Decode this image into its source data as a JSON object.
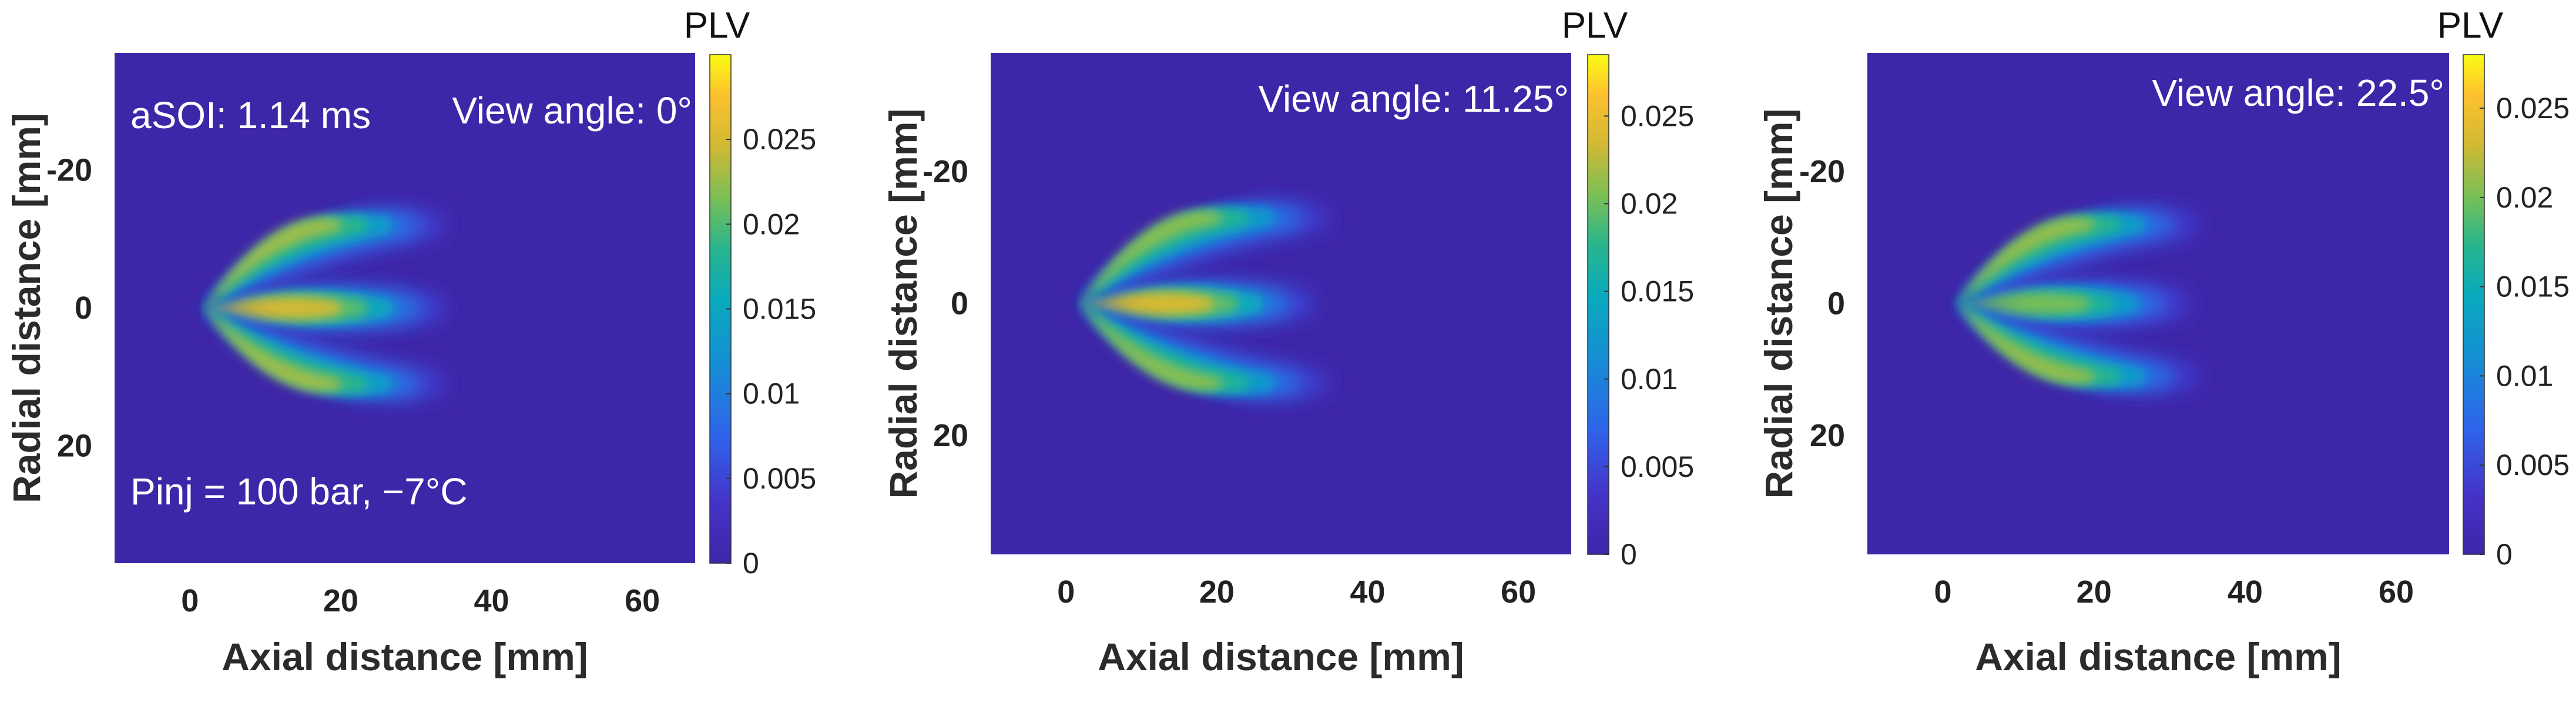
{
  "chart_data": [
    {
      "type": "heatmap",
      "colormap": "parula",
      "colorbar": {
        "label": "PLV",
        "range": [
          0,
          0.03
        ],
        "ticks": [
          "0",
          "0.005",
          "0.01",
          "0.015",
          "0.02",
          "0.025"
        ],
        "tick_values": [
          0,
          0.005,
          0.01,
          0.015,
          0.02,
          0.025
        ]
      },
      "xlabel": "Axial distance [mm]",
      "ylabel": "Radial distance [mm]",
      "xlim": [
        -10,
        67
      ],
      "ylim": [
        37,
        -37
      ],
      "xticks": [
        "0",
        "20",
        "40",
        "60"
      ],
      "xtick_values": [
        0,
        20,
        40,
        60
      ],
      "yticks": [
        "-20",
        "0",
        "20"
      ],
      "ytick_values": [
        -20,
        0,
        20
      ],
      "annotations": [
        "aSOI: 1.14 ms",
        "View angle: 0°",
        "Pinj = 100 bar, −7°C"
      ],
      "plumes": [
        {
          "center_y": 0,
          "tip_x": 33,
          "peak_plv": 0.026
        },
        {
          "center_y": -12,
          "tip_x": 33,
          "peak_plv": 0.024
        },
        {
          "center_y": 11,
          "tip_x": 33,
          "peak_plv": 0.024
        }
      ]
    },
    {
      "type": "heatmap",
      "colormap": "parula",
      "colorbar": {
        "label": "PLV",
        "range": [
          0,
          0.0285
        ],
        "ticks": [
          "0",
          "0.005",
          "0.01",
          "0.015",
          "0.02",
          "0.025"
        ],
        "tick_values": [
          0,
          0.005,
          0.01,
          0.015,
          0.02,
          0.025
        ]
      },
      "xlabel": "Axial distance [mm]",
      "ylabel": "Radial distance [mm]",
      "xlim": [
        -10,
        67
      ],
      "ylim": [
        38,
        -38
      ],
      "xticks": [
        "0",
        "20",
        "40",
        "60"
      ],
      "xtick_values": [
        0,
        20,
        40,
        60
      ],
      "yticks": [
        "-20",
        "0",
        "20"
      ],
      "ytick_values": [
        -20,
        0,
        20
      ],
      "annotations": [
        "View angle: 11.25°"
      ],
      "plumes": [
        {
          "center_y": 0,
          "tip_x": 32,
          "peak_plv": 0.025
        },
        {
          "center_y": -13,
          "tip_x": 34,
          "peak_plv": 0.022
        },
        {
          "center_y": 12,
          "tip_x": 34,
          "peak_plv": 0.022
        }
      ]
    },
    {
      "type": "heatmap",
      "colormap": "parula",
      "colorbar": {
        "label": "PLV",
        "range": [
          0,
          0.028
        ],
        "ticks": [
          "0",
          "0.005",
          "0.01",
          "0.015",
          "0.02",
          "0.025"
        ],
        "tick_values": [
          0,
          0.005,
          0.01,
          0.015,
          0.02,
          0.025
        ]
      },
      "xlabel": "Axial distance [mm]",
      "ylabel": "Radial distance [mm]",
      "xlim": [
        -10,
        67
      ],
      "ylim": [
        38,
        -38
      ],
      "xticks": [
        "0",
        "20",
        "40",
        "60"
      ],
      "xtick_values": [
        0,
        20,
        40,
        60
      ],
      "yticks": [
        "-20",
        "0",
        "20"
      ],
      "ytick_values": [
        -20,
        0,
        20
      ],
      "annotations": [
        "View angle: 22.5°"
      ],
      "plumes": [
        {
          "center_y": 0,
          "tip_x": 32,
          "peak_plv": 0.021
        },
        {
          "center_y": -12,
          "tip_x": 33,
          "peak_plv": 0.022
        },
        {
          "center_y": 11,
          "tip_x": 33,
          "peak_plv": 0.022
        }
      ]
    }
  ]
}
